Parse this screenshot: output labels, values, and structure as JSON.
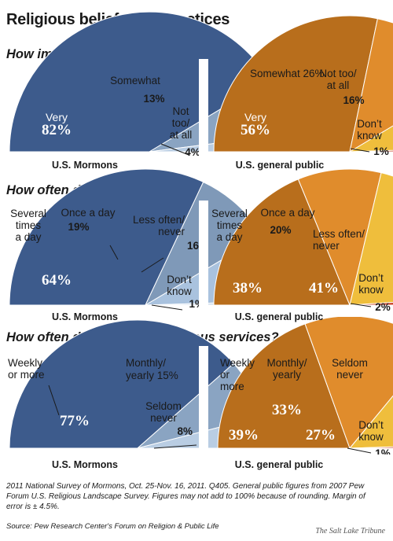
{
  "title": "Religious beliefs and practices",
  "chart_data": [
    {
      "type": "pie",
      "question": "How important is religion in your life?",
      "caption": "U.S. Mormons",
      "slices": [
        {
          "label": "Very",
          "value": 82,
          "display": "82%",
          "color": "#3d5b8c",
          "text": "#ffffff"
        },
        {
          "label": "Somewhat",
          "value": 13,
          "display": "13%",
          "color": "#8aa4c2",
          "text": "#1a1a1a"
        },
        {
          "label": "Not too/ at all",
          "value": 4,
          "display": "4%",
          "color": "#b9cde3",
          "text": "#1a1a1a"
        }
      ]
    },
    {
      "type": "pie",
      "question": "How important is religion in your life?",
      "caption": "U.S. general public",
      "slices": [
        {
          "label": "Very",
          "value": 56,
          "display": "56%",
          "color": "#b86e1c",
          "text": "#ffffff"
        },
        {
          "label": "Somewhat",
          "value": 26,
          "display": "26%",
          "color": "#e08c2c",
          "text": "#1a1a1a"
        },
        {
          "label": "Not too/ at all",
          "value": 16,
          "display": "16%",
          "color": "#efbe3c",
          "text": "#1a1a1a"
        },
        {
          "label": "Don't know",
          "value": 1,
          "display": "1%",
          "color": "#c9442b",
          "text": "#1a1a1a"
        }
      ]
    },
    {
      "type": "pie",
      "question": "How often do you pray?",
      "caption": "U.S. Mormons",
      "slices": [
        {
          "label": "Several times a day",
          "value": 64,
          "display": "64%",
          "color": "#3d5b8c",
          "text": "#ffffff"
        },
        {
          "label": "Once a day",
          "value": 19,
          "display": "19%",
          "color": "#7f99b8",
          "text": "#1a1a1a"
        },
        {
          "label": "Less often/ never",
          "value": 16,
          "display": "16%",
          "color": "#a9c2de",
          "text": "#1a1a1a"
        },
        {
          "label": "Don't know",
          "value": 1,
          "display": "1%",
          "color": "#cfdded",
          "text": "#1a1a1a"
        }
      ]
    },
    {
      "type": "pie",
      "question": "How often do you pray?",
      "caption": "U.S. general public",
      "slices": [
        {
          "label": "Several times a day",
          "value": 38,
          "display": "38%",
          "color": "#b86e1c",
          "text": "#ffffff"
        },
        {
          "label": "Once a day",
          "value": 20,
          "display": "20%",
          "color": "#e08c2c",
          "text": "#1a1a1a"
        },
        {
          "label": "Less often/ never",
          "value": 41,
          "display": "41%",
          "color": "#efbe3c",
          "text": "#ffffff"
        },
        {
          "label": "Don't know",
          "value": 2,
          "display": "2%",
          "color": "#c9442b",
          "text": "#1a1a1a"
        }
      ]
    },
    {
      "type": "pie",
      "question": "How often do you attend religious services?",
      "caption": "U.S. Mormons",
      "slices": [
        {
          "label": "Weekly or more",
          "value": 77,
          "display": "77%",
          "color": "#3d5b8c",
          "text": "#ffffff"
        },
        {
          "label": "Monthly/ yearly",
          "value": 15,
          "display": "15%",
          "color": "#8aa4c2",
          "text": "#1a1a1a"
        },
        {
          "label": "Seldom never",
          "value": 8,
          "display": "8%",
          "color": "#b9cde3",
          "text": "#1a1a1a"
        }
      ]
    },
    {
      "type": "pie",
      "question": "How often do you attend religious services?",
      "caption": "U.S. general public",
      "slices": [
        {
          "label": "Weekly or more",
          "value": 39,
          "display": "39%",
          "color": "#b86e1c",
          "text": "#ffffff"
        },
        {
          "label": "Monthly/ yearly",
          "value": 33,
          "display": "33%",
          "color": "#e08c2c",
          "text": "#ffffff"
        },
        {
          "label": "Seldom never",
          "value": 27,
          "display": "27%",
          "color": "#efbe3c",
          "text": "#ffffff"
        },
        {
          "label": "Don't know",
          "value": 1,
          "display": "1%",
          "color": "#c9442b",
          "text": "#1a1a1a"
        }
      ]
    }
  ],
  "footnote": "2011 National Survey of Mormons, Oct. 25-Nov. 16, 2011. Q405. General public figures from 2007 Pew Forum U.S. Religious Landscape Survey. Figures may not add to 100% because of rounding. Margin of error is ± 4.5%.",
  "source": "Source: Pew Research Center's Forum on Religion & Public Life",
  "credit": "The Salt Lake Tribune"
}
